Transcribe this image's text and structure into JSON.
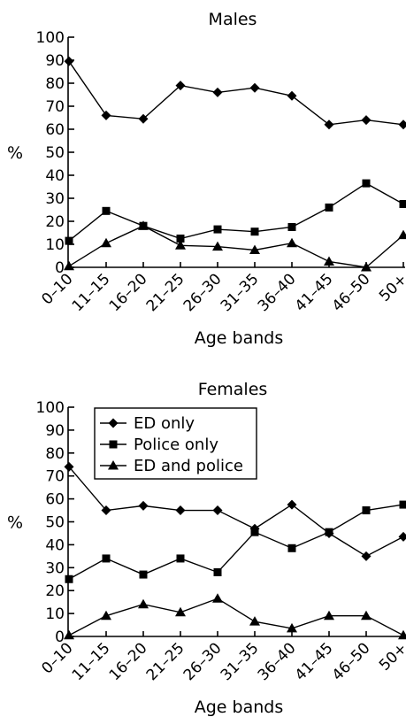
{
  "chart_data": [
    {
      "type": "line",
      "title": "Males",
      "xlabel": "Age bands",
      "ylabel": "%",
      "ylim": [
        0,
        100
      ],
      "yticks": [
        0,
        10,
        20,
        30,
        40,
        50,
        60,
        70,
        80,
        90,
        100
      ],
      "categories": [
        "0–10",
        "11–15",
        "16–20",
        "21–25",
        "26–30",
        "31–35",
        "36–40",
        "41–45",
        "46–50",
        "50+"
      ],
      "legend": "none",
      "series": [
        {
          "name": "ED only",
          "marker": "diamond",
          "values": [
            89.5,
            66,
            64.5,
            79,
            76,
            78,
            74.5,
            62,
            64,
            62
          ]
        },
        {
          "name": "Police only",
          "marker": "square",
          "values": [
            11.5,
            24.5,
            18,
            12.5,
            16.5,
            15.5,
            17.5,
            26,
            36.5,
            27.5
          ]
        },
        {
          "name": "ED and police",
          "marker": "triangle",
          "values": [
            0.5,
            10.5,
            18,
            9.5,
            9,
            7.5,
            10.5,
            2.5,
            0,
            14
          ]
        }
      ]
    },
    {
      "type": "line",
      "title": "Females",
      "xlabel": "Age bands",
      "ylabel": "%",
      "ylim": [
        0,
        100
      ],
      "yticks": [
        0,
        10,
        20,
        30,
        40,
        50,
        60,
        70,
        80,
        90,
        100
      ],
      "categories": [
        "0–10",
        "11–15",
        "16–20",
        "21–25",
        "26–30",
        "31–35",
        "36–40",
        "41–45",
        "46–50",
        "50+"
      ],
      "legend": "top-left",
      "series": [
        {
          "name": "ED only",
          "marker": "diamond",
          "values": [
            74,
            55,
            57,
            55,
            55,
            47,
            57.5,
            45,
            35,
            43.5
          ]
        },
        {
          "name": "Police only",
          "marker": "square",
          "values": [
            25,
            34,
            27,
            34,
            28,
            45.5,
            38.5,
            45.5,
            55,
            57.5
          ]
        },
        {
          "name": "ED and police",
          "marker": "triangle",
          "values": [
            0.5,
            9,
            14,
            10.5,
            16.5,
            6.5,
            3.5,
            9,
            9,
            0.5
          ]
        }
      ]
    }
  ]
}
